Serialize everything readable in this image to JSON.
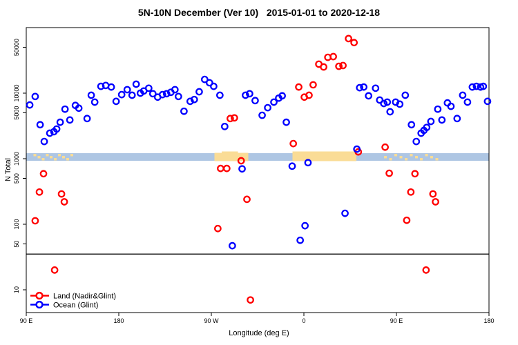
{
  "title": "5N-10N December (Ver 10)   2015-01-01 to 2020-12-18",
  "chart_data": {
    "type": "scatter",
    "title": "5N-10N December (Ver 10)   2015-01-01 to 2020-12-18",
    "xlabel": "Longitude (deg E)",
    "ylabel": "N Total",
    "x_axis": {
      "range_deg": [
        90,
        540
      ],
      "ticks_deg": [
        90,
        180,
        270,
        360,
        450,
        540
      ],
      "tick_labels": [
        "90 E",
        "180",
        "90 W",
        "0",
        "90 E",
        "180"
      ]
    },
    "y_axis": {
      "scale": "log10",
      "range": [
        4.5,
        100000
      ],
      "ticks": [
        10,
        50,
        100,
        500,
        1000,
        5000,
        10000,
        50000
      ],
      "tick_labels": [
        "10",
        "50",
        "100",
        "500",
        "1000",
        "5000",
        "10000",
        "50000"
      ]
    },
    "grid": false,
    "reference_line": {
      "value": 35,
      "color": "#222222"
    },
    "map_band": {
      "description": "land/ocean strip along equator band",
      "n_top": 1214,
      "n_bottom": 929,
      "ocean_color": "#aec6e3",
      "land_color": "#fadc96",
      "land_segments_deg": [
        {
          "name": "south-america",
          "from": 273,
          "to": 306,
          "n_top": 1229,
          "n_bottom": 918
        },
        {
          "name": "africa",
          "from": 349,
          "to": 411,
          "n_top": 1290,
          "n_bottom": 918
        }
      ],
      "bump_segments_deg": [
        {
          "from": 280,
          "to": 296,
          "n_top": 1290,
          "n_bottom": 1214
        }
      ],
      "island_speckles_deg": [
        97,
        101,
        105,
        109,
        113,
        117,
        121,
        125,
        129,
        133,
        438,
        443,
        448,
        453,
        458,
        463,
        468,
        473,
        478,
        483,
        488
      ]
    },
    "series": [
      {
        "name": "Land (Nadir&Glint)",
        "color": "#ff0000",
        "points": [
          [
            106.8,
            590
          ],
          [
            102.8,
            310
          ],
          [
            124.3,
            290
          ],
          [
            127,
            220
          ],
          [
            98.7,
            113
          ],
          [
            117.6,
            20
          ],
          [
            279,
            710
          ],
          [
            285,
            710
          ],
          [
            299,
            930
          ],
          [
            304.6,
            240
          ],
          [
            276.3,
            86
          ],
          [
            308,
            7
          ],
          [
            288.4,
            4100
          ],
          [
            292.4,
            4200
          ],
          [
            349.7,
            1700
          ],
          [
            355,
            12400
          ],
          [
            369,
            13400
          ],
          [
            360.4,
            8700
          ],
          [
            365,
            9300
          ],
          [
            374.5,
            27700
          ],
          [
            379.2,
            25100
          ],
          [
            383.3,
            35200
          ],
          [
            388.6,
            36100
          ],
          [
            394,
            25700
          ],
          [
            398,
            26400
          ],
          [
            403.4,
            68000
          ],
          [
            408.8,
            59000
          ],
          [
            412.9,
            1270
          ],
          [
            439,
            1500
          ],
          [
            443,
            600
          ],
          [
            468,
            590
          ],
          [
            464,
            310
          ],
          [
            485.5,
            290
          ],
          [
            488,
            220
          ],
          [
            460,
            115
          ],
          [
            478.8,
            20
          ]
        ]
      },
      {
        "name": "Ocean (Glint)",
        "color": "#0000ff",
        "points": [
          [
            93.4,
            6600
          ],
          [
            98.7,
            8900
          ],
          [
            103.5,
            3300
          ],
          [
            107.5,
            1830
          ],
          [
            112.9,
            2450
          ],
          [
            116.9,
            2580
          ],
          [
            119.6,
            2840
          ],
          [
            123,
            3600
          ],
          [
            127.7,
            5700
          ],
          [
            132.4,
            3900
          ],
          [
            137.8,
            6500
          ],
          [
            141.1,
            5900
          ],
          [
            149.2,
            4100
          ],
          [
            153.2,
            9300
          ],
          [
            156.6,
            7300
          ],
          [
            162.6,
            12700
          ],
          [
            167.3,
            13100
          ],
          [
            172.7,
            12400
          ],
          [
            177.4,
            7500
          ],
          [
            182.8,
            9500
          ],
          [
            188.2,
            11300
          ],
          [
            192.9,
            9300
          ],
          [
            196.9,
            13700
          ],
          [
            201,
            10000
          ],
          [
            204.3,
            10800
          ],
          [
            209.1,
            11900
          ],
          [
            213.1,
            9800
          ],
          [
            217.8,
            8700
          ],
          [
            222.5,
            9500
          ],
          [
            226.5,
            9800
          ],
          [
            230.6,
            10300
          ],
          [
            234.6,
            11300
          ],
          [
            238,
            8900
          ],
          [
            243.4,
            5300
          ],
          [
            249.4,
            7500
          ],
          [
            253.4,
            8000
          ],
          [
            258.2,
            10500
          ],
          [
            263.5,
            16200
          ],
          [
            268.2,
            14400
          ],
          [
            272.3,
            12700
          ],
          [
            278.3,
            9300
          ],
          [
            283,
            3100
          ],
          [
            290.4,
            47
          ],
          [
            299.9,
            700
          ],
          [
            303.2,
            9300
          ],
          [
            307.2,
            9800
          ],
          [
            312.6,
            7700
          ],
          [
            319.4,
            4600
          ],
          [
            324.8,
            6000
          ],
          [
            330.8,
            7300
          ],
          [
            335.5,
            8400
          ],
          [
            338.9,
            9100
          ],
          [
            342.9,
            3600
          ],
          [
            348.6,
            770
          ],
          [
            356.4,
            57
          ],
          [
            361.1,
            95
          ],
          [
            364,
            870
          ],
          [
            400,
            147
          ],
          [
            411.5,
            1400
          ],
          [
            414.2,
            12100
          ],
          [
            418.2,
            12400
          ],
          [
            422.9,
            9100
          ],
          [
            429.7,
            11900
          ],
          [
            433.7,
            7850
          ],
          [
            437.7,
            6950
          ],
          [
            441.1,
            7300
          ],
          [
            443.8,
            5200
          ],
          [
            449.2,
            7300
          ],
          [
            453.2,
            6800
          ],
          [
            458.6,
            9300
          ],
          [
            464.6,
            3300
          ],
          [
            469.3,
            1830
          ],
          [
            474,
            2450
          ],
          [
            476.7,
            2700
          ],
          [
            479.4,
            3000
          ],
          [
            483.5,
            3700
          ],
          [
            490.2,
            5700
          ],
          [
            494.2,
            3900
          ],
          [
            499.6,
            7100
          ],
          [
            503,
            6300
          ],
          [
            509,
            4100
          ],
          [
            514.4,
            9300
          ],
          [
            519.1,
            7300
          ],
          [
            523.8,
            12400
          ],
          [
            527.8,
            12700
          ],
          [
            531.8,
            12400
          ],
          [
            534.5,
            12700
          ],
          [
            538.6,
            7500
          ]
        ]
      }
    ],
    "legend": {
      "position": "bottom-left",
      "items": [
        {
          "label": "Land (Nadir&Glint)",
          "color": "#ff0000"
        },
        {
          "label": "Ocean (Glint)",
          "color": "#0000ff"
        }
      ]
    }
  }
}
